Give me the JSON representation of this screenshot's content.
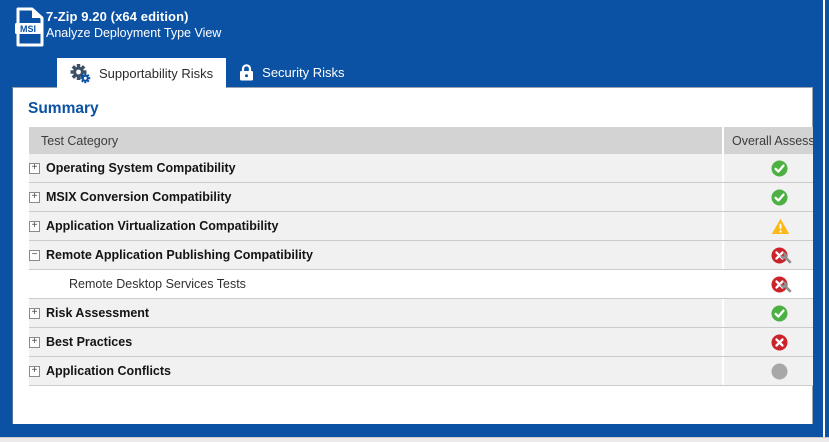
{
  "window": {
    "title": "7-Zip 9.20 (x64 edition)",
    "subtitle": "Analyze Deployment Type View",
    "app_icon": "msi-file-icon"
  },
  "tabs": [
    {
      "label": "Supportability Risks",
      "icon": "gears-icon",
      "active": true
    },
    {
      "label": "Security Risks",
      "icon": "lock-icon",
      "active": false
    }
  ],
  "summary": {
    "heading": "Summary",
    "columns": [
      {
        "label": "Test Category"
      },
      {
        "label": "Overall Assessment"
      }
    ],
    "rows": [
      {
        "label": "Operating System Compatibility",
        "expander": "+",
        "child": false,
        "assessment": "pass"
      },
      {
        "label": "MSIX Conversion Compatibility",
        "expander": "+",
        "child": false,
        "assessment": "pass"
      },
      {
        "label": "Application Virtualization Compatibility",
        "expander": "+",
        "child": false,
        "assessment": "warning"
      },
      {
        "label": "Remote Application Publishing Compatibility",
        "expander": "−",
        "child": false,
        "assessment": "fail-fixable"
      },
      {
        "label": "Remote Desktop Services Tests",
        "expander": "",
        "child": true,
        "assessment": "fail-fixable"
      },
      {
        "label": "Risk Assessment",
        "expander": "+",
        "child": false,
        "assessment": "pass"
      },
      {
        "label": "Best Practices",
        "expander": "+",
        "child": false,
        "assessment": "fail"
      },
      {
        "label": "Application Conflicts",
        "expander": "+",
        "child": false,
        "assessment": "none"
      }
    ]
  },
  "colors": {
    "accent_blue": "#0C52A4",
    "pass_green": "#4CB043",
    "warning_amber": "#FBB817",
    "fail_red": "#CC2229",
    "neutral_gray": "#A8A8A8",
    "wrench_gray": "#8F8F8F"
  }
}
